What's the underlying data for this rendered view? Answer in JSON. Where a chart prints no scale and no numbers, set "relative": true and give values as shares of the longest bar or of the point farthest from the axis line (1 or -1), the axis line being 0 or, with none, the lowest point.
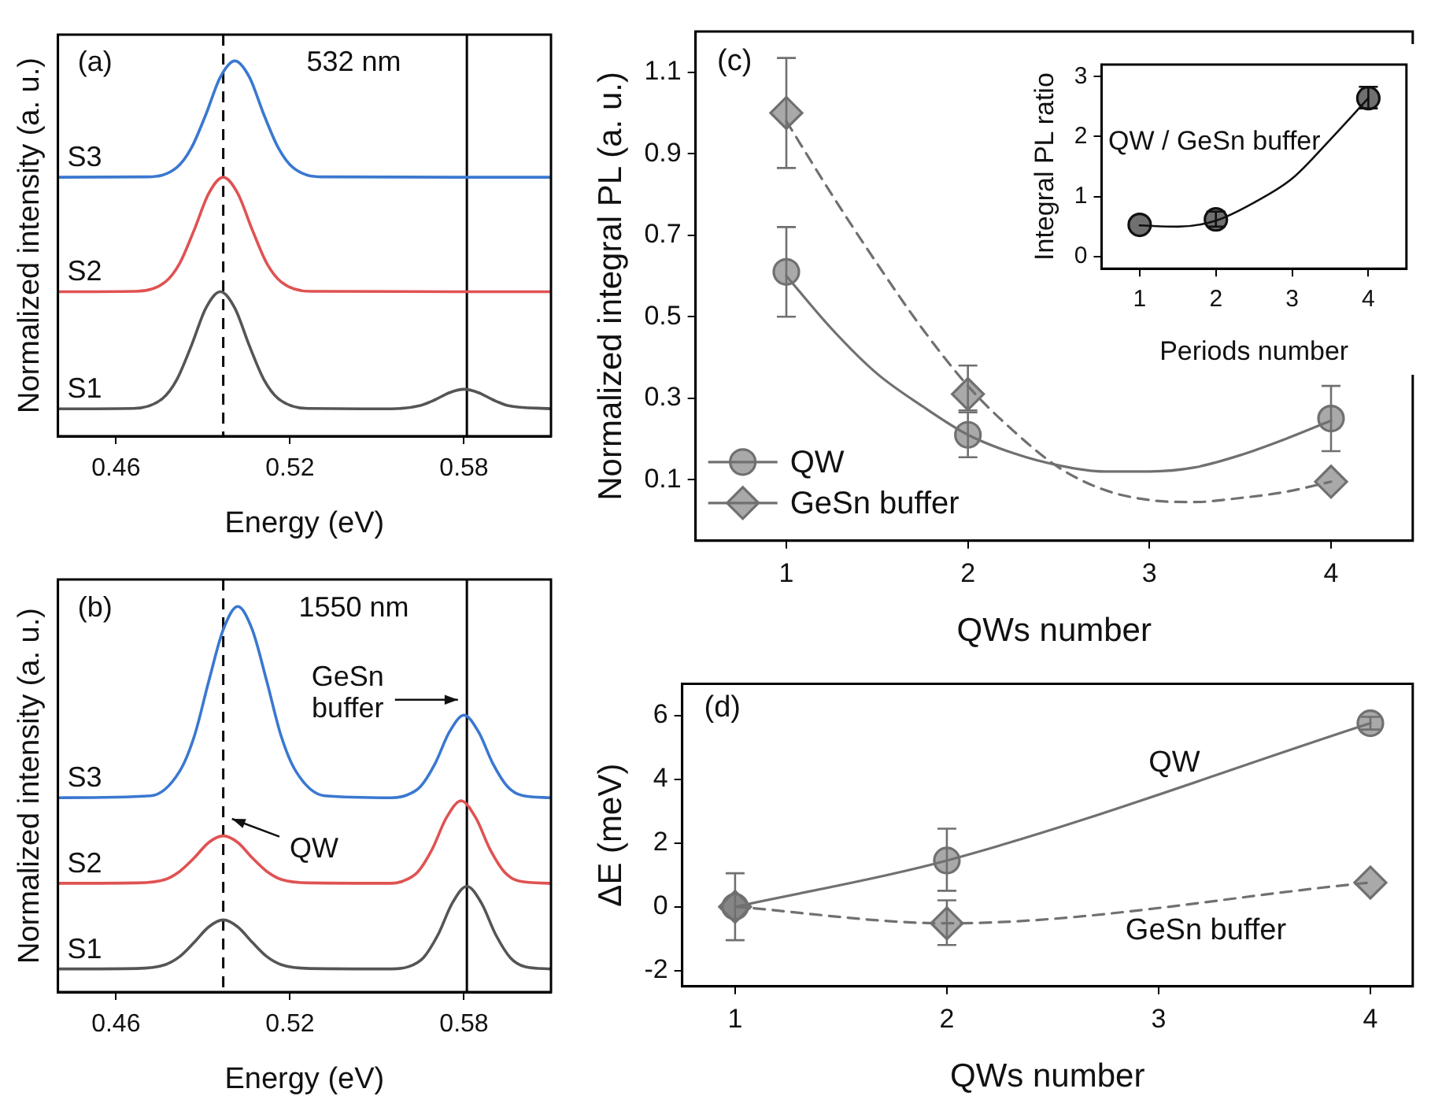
{
  "chart_data": [
    {
      "type": "line",
      "relative": true,
      "xlabel": "Energy (eV)",
      "ylabel": "Normalized intensity (a. u.)",
      "xlim": [
        0.44,
        0.61
      ],
      "xticks": [
        0.46,
        0.52,
        0.58
      ],
      "series": [
        {
          "name": "S3",
          "color": "#3a78d0",
          "x": [
            0.44,
            0.471,
            0.481,
            0.486,
            0.491,
            0.496,
            0.501,
            0.506,
            0.511,
            0.516,
            0.521,
            0.531,
            0.61
          ],
          "values": [
            0.69,
            0.691,
            0.716,
            0.768,
            0.857,
            0.957,
            1.0,
            0.957,
            0.857,
            0.768,
            0.716,
            0.691,
            0.69
          ]
        },
        {
          "name": "S2",
          "color": "#e05252",
          "x": [
            0.44,
            0.467,
            0.477,
            0.482,
            0.487,
            0.492,
            0.497,
            0.502,
            0.507,
            0.512,
            0.517,
            0.527,
            0.61
          ],
          "values": [
            0.385,
            0.386,
            0.411,
            0.461,
            0.55,
            0.647,
            0.69,
            0.647,
            0.55,
            0.461,
            0.411,
            0.386,
            0.385
          ]
        },
        {
          "name": "S1",
          "color": "#555555",
          "x": [
            0.44,
            0.466,
            0.476,
            0.481,
            0.486,
            0.491,
            0.496,
            0.501,
            0.506,
            0.511,
            0.516,
            0.526,
            0.555,
            0.565,
            0.57,
            0.575,
            0.58,
            0.585,
            0.59,
            0.595,
            0.61
          ],
          "values": [
            0.073,
            0.074,
            0.1,
            0.151,
            0.241,
            0.341,
            0.385,
            0.341,
            0.241,
            0.151,
            0.1,
            0.074,
            0.073,
            0.082,
            0.097,
            0.116,
            0.125,
            0.116,
            0.097,
            0.082,
            0.073
          ]
        }
      ],
      "ref_lines": [
        {
          "axis": "x",
          "value": 0.497,
          "line_style": "dashed",
          "color": "#000000"
        },
        {
          "axis": "x",
          "value": 0.581,
          "line_style": "solid",
          "color": "#000000"
        }
      ],
      "annotations": [
        "(a)",
        "532 nm"
      ]
    },
    {
      "type": "line",
      "relative": true,
      "xlabel": "Energy (eV)",
      "ylabel": "Normalized intensity (a. u.)",
      "xlim": [
        0.44,
        0.61
      ],
      "xticks": [
        0.46,
        0.52,
        0.58
      ],
      "series": [
        {
          "name": "S3",
          "color": "#3a78d0",
          "x": [
            0.44,
            0.472,
            0.482,
            0.487,
            0.492,
            0.497,
            0.502,
            0.507,
            0.512,
            0.517,
            0.522,
            0.532,
            0.555,
            0.56,
            0.565,
            0.57,
            0.575,
            0.58,
            0.585,
            0.59,
            0.595,
            0.6,
            0.61
          ],
          "values": [
            0.504,
            0.509,
            0.573,
            0.663,
            0.806,
            0.94,
            1.0,
            0.94,
            0.806,
            0.663,
            0.573,
            0.509,
            0.504,
            0.51,
            0.533,
            0.592,
            0.675,
            0.718,
            0.675,
            0.592,
            0.533,
            0.51,
            0.504
          ]
        },
        {
          "name": "S2",
          "color": "#e05252",
          "x": [
            0.44,
            0.467,
            0.477,
            0.482,
            0.487,
            0.492,
            0.497,
            0.502,
            0.507,
            0.512,
            0.517,
            0.527,
            0.555,
            0.559,
            0.564,
            0.569,
            0.574,
            0.579,
            0.584,
            0.589,
            0.594,
            0.599,
            0.61
          ],
          "values": [
            0.282,
            0.283,
            0.292,
            0.313,
            0.348,
            0.388,
            0.405,
            0.388,
            0.348,
            0.313,
            0.292,
            0.283,
            0.282,
            0.288,
            0.311,
            0.37,
            0.453,
            0.496,
            0.453,
            0.37,
            0.311,
            0.288,
            0.282
          ]
        },
        {
          "name": "S1",
          "color": "#555555",
          "x": [
            0.44,
            0.467,
            0.477,
            0.482,
            0.487,
            0.492,
            0.497,
            0.502,
            0.507,
            0.512,
            0.517,
            0.527,
            0.555,
            0.561,
            0.566,
            0.571,
            0.576,
            0.581,
            0.586,
            0.591,
            0.596,
            0.601,
            0.61
          ],
          "values": [
            0.06,
            0.061,
            0.071,
            0.092,
            0.129,
            0.169,
            0.187,
            0.169,
            0.129,
            0.092,
            0.071,
            0.061,
            0.06,
            0.066,
            0.089,
            0.148,
            0.231,
            0.274,
            0.231,
            0.148,
            0.089,
            0.066,
            0.06
          ]
        }
      ],
      "ref_lines": [
        {
          "axis": "x",
          "value": 0.497,
          "line_style": "dashed",
          "color": "#000000"
        },
        {
          "axis": "x",
          "value": 0.581,
          "line_style": "solid",
          "color": "#000000"
        }
      ],
      "annotations": [
        "(b)",
        "1550 nm",
        {
          "text": "GeSn buffer",
          "x": 0.579,
          "y": 0.758
        },
        {
          "text": "QW",
          "x": 0.499,
          "y": 0.452
        }
      ]
    },
    {
      "type": "scatter",
      "xlabel": "QWs number",
      "ylabel": "Normalized integral PL (a. u.)",
      "xlim": [
        0.5,
        4.45
      ],
      "xticks": [
        1,
        2,
        3,
        4
      ],
      "ylim": [
        -0.05,
        1.2
      ],
      "yticks": [
        0.1,
        0.3,
        0.5,
        0.7,
        0.9,
        1.1
      ],
      "legend": "bottom left",
      "series": [
        {
          "name": "QW",
          "color": "#707070",
          "marker": "circle",
          "x": [
            1,
            2,
            4
          ],
          "values": [
            0.61,
            0.21,
            0.25
          ],
          "errors": [
            [
              0.5,
              0.72
            ],
            [
              0.155,
              0.265
            ],
            [
              0.17,
              0.33
            ]
          ]
        },
        {
          "name": "GeSn buffer",
          "color": "#707070",
          "marker": "diamond",
          "x": [
            1,
            2,
            4
          ],
          "values": [
            1.0,
            0.31,
            0.095
          ],
          "errors": [
            [
              0.865,
              1.135
            ],
            [
              0.27,
              0.38
            ],
            null
          ]
        },
        {
          "type": "line",
          "color": "#707070",
          "line_style": "solid",
          "x": [
            1,
            1.25,
            1.5,
            1.75,
            2,
            2.25,
            2.5,
            2.75,
            3,
            3.25,
            3.5,
            3.75,
            4
          ],
          "values": [
            0.6,
            0.47,
            0.36,
            0.28,
            0.21,
            0.165,
            0.135,
            0.12,
            0.12,
            0.13,
            0.16,
            0.2,
            0.245
          ]
        },
        {
          "type": "line",
          "color": "#707070",
          "line_style": "dashed",
          "x": [
            1,
            1.25,
            1.5,
            1.75,
            2,
            2.25,
            2.5,
            2.75,
            3,
            3.25,
            3.5,
            3.75,
            4
          ],
          "values": [
            0.98,
            0.8,
            0.63,
            0.47,
            0.33,
            0.22,
            0.13,
            0.075,
            0.05,
            0.045,
            0.055,
            0.07,
            0.095
          ]
        }
      ],
      "annotations": [
        "(c)"
      ]
    },
    {
      "type": "scatter",
      "xlabel": "Periods number",
      "ylabel": "Integral PL ratio",
      "xlim": [
        0.5,
        4.5
      ],
      "xticks": [
        1,
        2,
        3,
        4
      ],
      "ylim": [
        -0.2,
        3.2
      ],
      "yticks": [
        0,
        1,
        2,
        3
      ],
      "series": [
        {
          "color": "#111111",
          "marker": "circle",
          "x": [
            1,
            2,
            4
          ],
          "values": [
            0.53,
            0.62,
            2.64
          ],
          "errors": [
            null,
            [
              0.5,
              0.75
            ],
            [
              2.47,
              2.83
            ]
          ]
        },
        {
          "type": "line",
          "color": "#111111",
          "line_style": "solid",
          "x": [
            1,
            1.5,
            2,
            2.5,
            3,
            3.5,
            4
          ],
          "values": [
            0.52,
            0.5,
            0.6,
            0.9,
            1.3,
            1.95,
            2.64
          ]
        }
      ],
      "annotations": [
        "QW / GeSn buffer"
      ]
    },
    {
      "type": "line",
      "xlabel": "QWs number",
      "ylabel": "ΔE (meV)",
      "xlim": [
        0.75,
        4.2
      ],
      "xticks": [
        1,
        2,
        3,
        4
      ],
      "ylim": [
        -2.5,
        7
      ],
      "yticks": [
        -2,
        0,
        2,
        4,
        6
      ],
      "series": [
        {
          "name": "QW",
          "color": "#707070",
          "marker": "circle",
          "line_style": "solid",
          "x": [
            1,
            2,
            4
          ],
          "values": [
            0,
            1.45,
            5.76
          ],
          "errors": [
            1.05,
            [
              0.5,
              2.45
            ],
            0.2
          ]
        },
        {
          "name": "GeSn buffer",
          "color": "#707070",
          "marker": "diamond",
          "line_style": "dashed",
          "x": [
            1,
            2,
            4
          ],
          "values": [
            0,
            -0.52,
            0.76
          ],
          "errors": [
            null,
            [
              -1.2,
              0.2
            ],
            null
          ]
        }
      ],
      "annotations": [
        "(d)"
      ]
    }
  ]
}
